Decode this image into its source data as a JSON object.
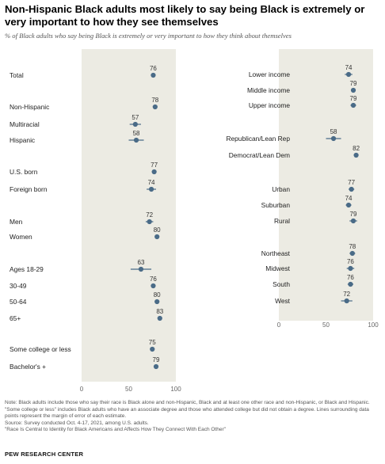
{
  "header": {
    "title": "Non-Hispanic Black adults most likely to say being Black is extremely or very important to how they see themselves",
    "subtitle": "% of Black adults who say being Black is extremely or very important to how they think about themselves"
  },
  "chart_data": [
    {
      "type": "scatter",
      "xlim": [
        0,
        100
      ],
      "xticks": [
        0,
        50,
        100
      ],
      "grid": false,
      "categories": [
        "Total",
        "Non-Hispanic",
        "Multiracial",
        "Hispanic",
        "U.S. born",
        "Foreign born",
        "Men",
        "Women",
        "Ages 18-29",
        "30-49",
        "50-64",
        "65+",
        "Some college or less",
        "Bachelor's +"
      ],
      "values": [
        76,
        78,
        57,
        58,
        77,
        74,
        72,
        80,
        63,
        76,
        80,
        83,
        75,
        79
      ],
      "error_margin": [
        2,
        2,
        6,
        8,
        2,
        5,
        4,
        2,
        11,
        2,
        2,
        2,
        2,
        2
      ]
    },
    {
      "type": "scatter",
      "xlim": [
        0,
        100
      ],
      "xticks": [
        0,
        50,
        100
      ],
      "grid": false,
      "categories": [
        "Lower income",
        "Middle income",
        "Upper income",
        "Republican/Lean Rep",
        "Democrat/Lean Dem",
        "Urban",
        "Suburban",
        "Rural",
        "Northeast",
        "Midwest",
        "South",
        "West"
      ],
      "values": [
        74,
        79,
        79,
        58,
        82,
        77,
        74,
        79,
        78,
        76,
        76,
        72
      ],
      "error_margin": [
        4,
        2,
        3,
        8,
        2,
        3,
        3,
        4,
        3,
        4,
        3,
        6
      ]
    }
  ],
  "footer": {
    "note": "Note: Black adults include those who say their race is Black alone and non-Hispanic, Black and at least one other race and non-Hispanic, or Black and Hispanic. \"Some college or less\" includes Black adults who have an associate degree and those who attended college but did not obtain a degree. Lines surrounding data points represent the margin of error of each estimate.",
    "source": "Source: Survey conducted Oct. 4-17, 2021, among U.S. adults.",
    "report": "\"Race Is Central to Identity for Black Americans and Affects How They Connect With Each Other\"",
    "brand": "PEW RESEARCH CENTER"
  },
  "colors": {
    "panel": "#ecebe3",
    "dot": "#4a6b87",
    "bar": "#4a6b87"
  }
}
